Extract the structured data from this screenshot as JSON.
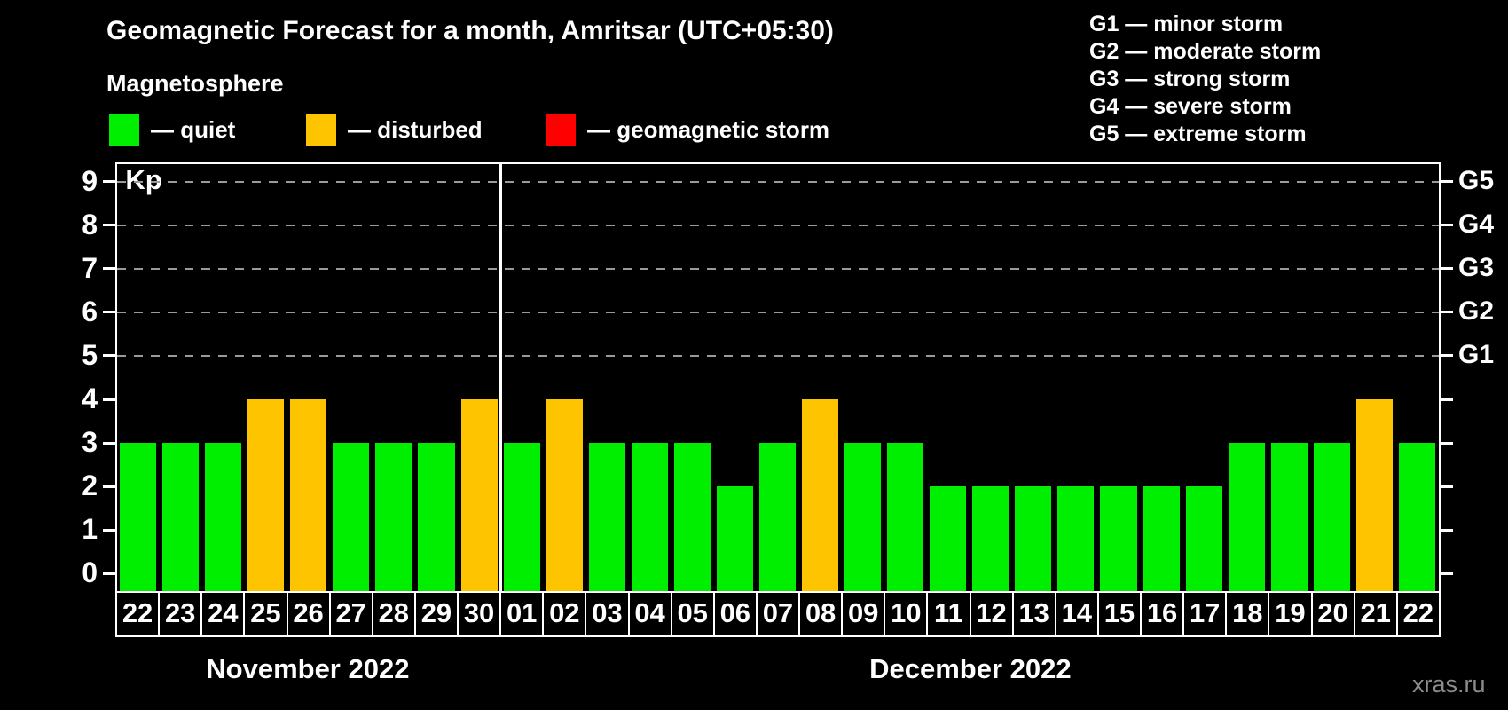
{
  "title": "Geomagnetic Forecast for a month, Amritsar (UTC+05:30)",
  "subtitle": "Magnetosphere",
  "legend": {
    "items": [
      {
        "key": "quiet",
        "label": "— quiet",
        "color": "#00ee00"
      },
      {
        "key": "disturbed",
        "label": "— disturbed",
        "color": "#ffc400"
      },
      {
        "key": "storm",
        "label": "— geomagnetic storm",
        "color": "#ff0000"
      }
    ]
  },
  "storm_scale_legend": [
    "G1 — minor storm",
    "G2 — moderate storm",
    "G3 — strong storm",
    "G4 — severe storm",
    "G5 — extreme storm"
  ],
  "watermark": "xras.ru",
  "chart_data": {
    "type": "bar",
    "ylabel": "Kp",
    "axis_range": [
      -0.4,
      9.4
    ],
    "y_ticks": [
      0,
      1,
      2,
      3,
      4,
      5,
      6,
      7,
      8,
      9
    ],
    "gridline_values": [
      5,
      6,
      7,
      8,
      9
    ],
    "right_axis_labels": [
      {
        "value": 5,
        "label": "G1"
      },
      {
        "value": 6,
        "label": "G2"
      },
      {
        "value": 7,
        "label": "G3"
      },
      {
        "value": 8,
        "label": "G4"
      },
      {
        "value": 9,
        "label": "G5"
      }
    ],
    "grid": "dashed-horizontal",
    "legend_position": "top-left",
    "categories": [
      "22",
      "23",
      "24",
      "25",
      "26",
      "27",
      "28",
      "29",
      "30",
      "01",
      "02",
      "03",
      "04",
      "05",
      "06",
      "07",
      "08",
      "09",
      "10",
      "11",
      "12",
      "13",
      "14",
      "15",
      "16",
      "17",
      "18",
      "19",
      "20",
      "21",
      "22"
    ],
    "values": [
      3,
      3,
      3,
      4,
      4,
      3,
      3,
      3,
      4,
      3,
      4,
      3,
      3,
      3,
      2,
      3,
      4,
      3,
      3,
      2,
      2,
      2,
      2,
      2,
      2,
      2,
      3,
      3,
      3,
      4,
      3
    ],
    "statuses": [
      "quiet",
      "quiet",
      "quiet",
      "disturbed",
      "disturbed",
      "quiet",
      "quiet",
      "quiet",
      "disturbed",
      "quiet",
      "disturbed",
      "quiet",
      "quiet",
      "quiet",
      "quiet",
      "quiet",
      "disturbed",
      "quiet",
      "quiet",
      "quiet",
      "quiet",
      "quiet",
      "quiet",
      "quiet",
      "quiet",
      "quiet",
      "quiet",
      "quiet",
      "quiet",
      "disturbed",
      "quiet"
    ],
    "colors": {
      "quiet": "#00ee00",
      "disturbed": "#ffc400",
      "storm": "#ff0000"
    },
    "month_separator_index": 9,
    "months": [
      {
        "label": "November 2022",
        "start": 0,
        "count": 9
      },
      {
        "label": "December 2022",
        "start": 9,
        "count": 22
      }
    ]
  }
}
